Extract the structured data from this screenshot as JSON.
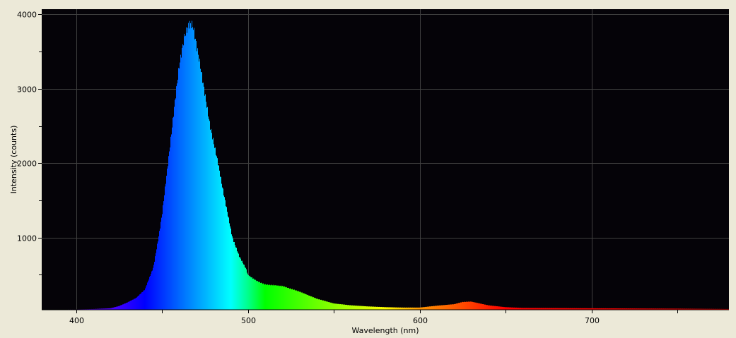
{
  "chart_data": {
    "type": "area",
    "title": "",
    "xlabel": "Wavelength (nm)",
    "ylabel": "Intensity (counts)",
    "xlim": [
      380,
      780
    ],
    "ylim": [
      30,
      4070
    ],
    "x_ticks": [
      400,
      500,
      600,
      700
    ],
    "y_ticks": [
      1000,
      2000,
      3000,
      4000
    ],
    "x_tick_labels": [
      "400",
      "500",
      "600",
      "700"
    ],
    "y_tick_labels": [
      "1000",
      "2000",
      "3000",
      "4000"
    ],
    "grid": true,
    "fill": "wavelength-colored spectrum",
    "colors": {
      "background": "#ece9d8",
      "plot_background": "#050308",
      "grid": "#404040"
    },
    "x": [
      395,
      400,
      410,
      420,
      425,
      430,
      435,
      440,
      445,
      448,
      450,
      453.5,
      455,
      458.4,
      460,
      463,
      466,
      468,
      470,
      472,
      474.5,
      478,
      482.7,
      485,
      488,
      491,
      495,
      499,
      500,
      505,
      510,
      520,
      530,
      540,
      550,
      560,
      570,
      580,
      590,
      600,
      610,
      620,
      625,
      630,
      635,
      640,
      650,
      660,
      700,
      750,
      780
    ],
    "y": [
      35,
      35,
      40,
      50,
      80,
      130,
      190,
      300,
      600,
      1000,
      1300,
      2000,
      2300,
      3000,
      3300,
      3700,
      3880,
      3850,
      3600,
      3350,
      3000,
      2500,
      2000,
      1700,
      1350,
      1000,
      750,
      580,
      500,
      420,
      370,
      350,
      275,
      180,
      115,
      90,
      75,
      65,
      60,
      60,
      85,
      105,
      135,
      140,
      115,
      90,
      65,
      55,
      50,
      45,
      40
    ]
  }
}
